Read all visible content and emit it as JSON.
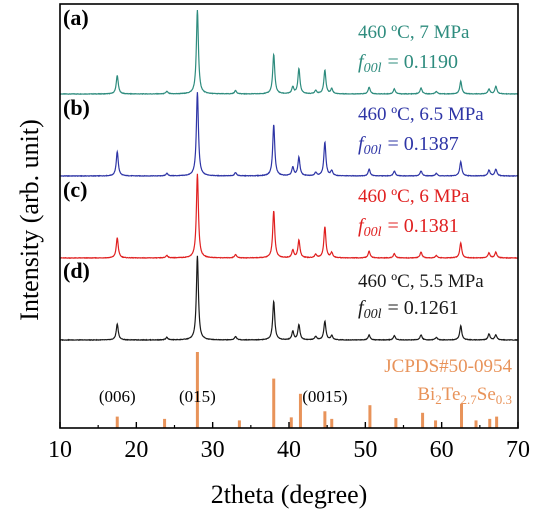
{
  "chart_data": {
    "type": "line",
    "xlabel": "2theta (degree)",
    "ylabel": "Intensity (arb. unit)",
    "xlim": [
      10,
      70
    ],
    "xticks": [
      10,
      20,
      30,
      40,
      50,
      60,
      70
    ],
    "grid": false,
    "series": [
      {
        "label": "(a)",
        "condition": "460 ºC, 7 MPa",
        "f_label": "f",
        "f_sub": "00l",
        "f_value": "= 0.1190",
        "color": "#2e8c7e",
        "peaks": [
          [
            17.5,
            0.22
          ],
          [
            24.0,
            0.03
          ],
          [
            28.0,
            1.0
          ],
          [
            33.0,
            0.04
          ],
          [
            38.0,
            0.47
          ],
          [
            40.5,
            0.08
          ],
          [
            41.3,
            0.3
          ],
          [
            43.5,
            0.04
          ],
          [
            44.7,
            0.28
          ],
          [
            45.6,
            0.06
          ],
          [
            50.5,
            0.08
          ],
          [
            53.8,
            0.06
          ],
          [
            57.3,
            0.07
          ],
          [
            59.3,
            0.03
          ],
          [
            62.5,
            0.15
          ],
          [
            66.2,
            0.06
          ],
          [
            67.1,
            0.09
          ]
        ]
      },
      {
        "label": "(b)",
        "condition": "460 ºC, 6.5 MPa",
        "f_label": "f",
        "f_sub": "00l",
        "f_value": "= 0.1387",
        "color": "#2e35a6",
        "peaks": [
          [
            17.5,
            0.29
          ],
          [
            24.0,
            0.03
          ],
          [
            28.0,
            1.0
          ],
          [
            33.0,
            0.04
          ],
          [
            38.0,
            0.61
          ],
          [
            40.5,
            0.1
          ],
          [
            41.3,
            0.22
          ],
          [
            43.5,
            0.04
          ],
          [
            44.7,
            0.4
          ],
          [
            45.6,
            0.06
          ],
          [
            50.5,
            0.08
          ],
          [
            53.8,
            0.06
          ],
          [
            57.3,
            0.06
          ],
          [
            59.3,
            0.03
          ],
          [
            62.5,
            0.17
          ],
          [
            66.2,
            0.07
          ],
          [
            67.1,
            0.08
          ]
        ]
      },
      {
        "label": "(c)",
        "condition": "460 ºC, 6 MPa",
        "f_label": "f",
        "f_sub": "00l",
        "f_value": "= 0.1381",
        "color": "#e02020",
        "peaks": [
          [
            17.5,
            0.24
          ],
          [
            24.0,
            0.03
          ],
          [
            28.0,
            1.0
          ],
          [
            33.0,
            0.04
          ],
          [
            38.0,
            0.56
          ],
          [
            40.5,
            0.09
          ],
          [
            41.3,
            0.21
          ],
          [
            43.5,
            0.04
          ],
          [
            44.7,
            0.37
          ],
          [
            45.6,
            0.06
          ],
          [
            50.5,
            0.08
          ],
          [
            53.8,
            0.05
          ],
          [
            57.3,
            0.07
          ],
          [
            59.3,
            0.03
          ],
          [
            62.5,
            0.18
          ],
          [
            66.2,
            0.06
          ],
          [
            67.1,
            0.07
          ]
        ]
      },
      {
        "label": "(d)",
        "condition": "460 ºC, 5.5 MPa",
        "f_label": "f",
        "f_sub": "00l",
        "f_value": "= 0.1261",
        "color": "#1a1a1a",
        "peaks": [
          [
            17.5,
            0.19
          ],
          [
            24.0,
            0.03
          ],
          [
            28.0,
            1.0
          ],
          [
            33.0,
            0.04
          ],
          [
            38.0,
            0.46
          ],
          [
            40.5,
            0.1
          ],
          [
            41.3,
            0.18
          ],
          [
            43.5,
            0.04
          ],
          [
            44.7,
            0.22
          ],
          [
            45.6,
            0.05
          ],
          [
            50.5,
            0.06
          ],
          [
            53.8,
            0.05
          ],
          [
            57.3,
            0.06
          ],
          [
            59.3,
            0.03
          ],
          [
            62.5,
            0.17
          ],
          [
            66.2,
            0.07
          ],
          [
            67.1,
            0.06
          ]
        ]
      }
    ],
    "reference": {
      "label_line1": "JCPDS#50-0954",
      "formula_parts": [
        "Bi",
        "2",
        "Te",
        "2.7",
        "Se",
        "0.3"
      ],
      "color": "#e8935a",
      "sticks": [
        [
          17.5,
          0.15
        ],
        [
          23.7,
          0.12
        ],
        [
          28.0,
          1.0
        ],
        [
          33.5,
          0.1
        ],
        [
          38.0,
          0.65
        ],
        [
          40.3,
          0.14
        ],
        [
          41.5,
          0.45
        ],
        [
          44.7,
          0.22
        ],
        [
          45.6,
          0.12
        ],
        [
          50.6,
          0.3
        ],
        [
          54.0,
          0.13
        ],
        [
          57.5,
          0.2
        ],
        [
          59.2,
          0.1
        ],
        [
          62.6,
          0.32
        ],
        [
          64.5,
          0.1
        ],
        [
          66.3,
          0.12
        ],
        [
          67.2,
          0.15
        ]
      ],
      "hkl_labels": [
        {
          "x": 17.5,
          "text": "(006)"
        },
        {
          "x": 28.0,
          "text": "(015)"
        },
        {
          "x": 44.7,
          "text": "(0015)"
        }
      ]
    }
  }
}
